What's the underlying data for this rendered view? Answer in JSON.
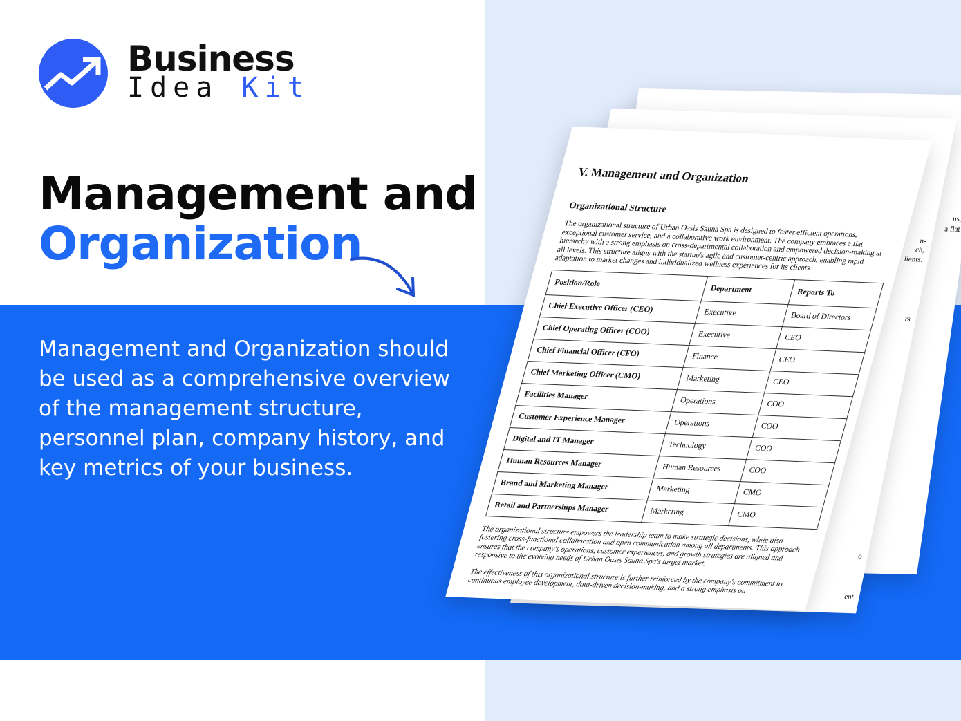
{
  "brand": {
    "line1": "Business",
    "line2a": "Idea",
    "line2b": "Kit",
    "color": "#2e5cf5"
  },
  "headline": {
    "line1": "Management and",
    "line2": "Organization"
  },
  "description": "Management and Organization should be used as a comprehensive overview of the management structure, personnel plan, company history, and key metrics of your business.",
  "colors": {
    "band": "#1469f5",
    "right_bg": "#e0ebfb"
  },
  "back_fragments": [
    "ns,",
    "a flat",
    "n-",
    "ch,",
    "lients.",
    "rs",
    "o",
    "ent"
  ],
  "document": {
    "title": "V. Management and Organization",
    "subtitle": "Organizational Structure",
    "intro": "The organizational structure of Urban Oasis Sauna Spa is designed to foster efficient operations, exceptional customer service, and a collaborative work environment. The company embraces a flat hierarchy with a strong emphasis on cross-departmental collaboration and empowered decision-making at all levels. This structure aligns with the startup's agile and customer-centric approach, enabling rapid adaptation to market changes and individualized wellness experiences for its clients.",
    "table": {
      "headers": [
        "Position/Role",
        "Department",
        "Reports To"
      ],
      "rows": [
        [
          "Chief Executive Officer (CEO)",
          "Executive",
          "Board of Directors"
        ],
        [
          "Chief Operating Officer (COO)",
          "Executive",
          "CEO"
        ],
        [
          "Chief Financial Officer (CFO)",
          "Finance",
          "CEO"
        ],
        [
          "Chief Marketing Officer (CMO)",
          "Marketing",
          "CEO"
        ],
        [
          "Facilities Manager",
          "Operations",
          "COO"
        ],
        [
          "Customer Experience Manager",
          "Operations",
          "COO"
        ],
        [
          "Digital and IT Manager",
          "Technology",
          "COO"
        ],
        [
          "Human Resources Manager",
          "Human Resources",
          "COO"
        ],
        [
          "Brand and Marketing Manager",
          "Marketing",
          "CMO"
        ],
        [
          "Retail and Partnerships Manager",
          "Marketing",
          "CMO"
        ]
      ]
    },
    "para2": "The organizational structure empowers the leadership team to make strategic decisions, while also fostering cross-functional collaboration and open communication among all departments. This approach ensures that the company's operations, customer experiences, and growth strategies are aligned and responsive to the evolving needs of Urban Oasis Sauna Spa's target market.",
    "para3": "The effectiveness of this organizational structure is further reinforced by the company's commitment to continuous employee development, data-driven decision-making, and a strong emphasis on"
  }
}
